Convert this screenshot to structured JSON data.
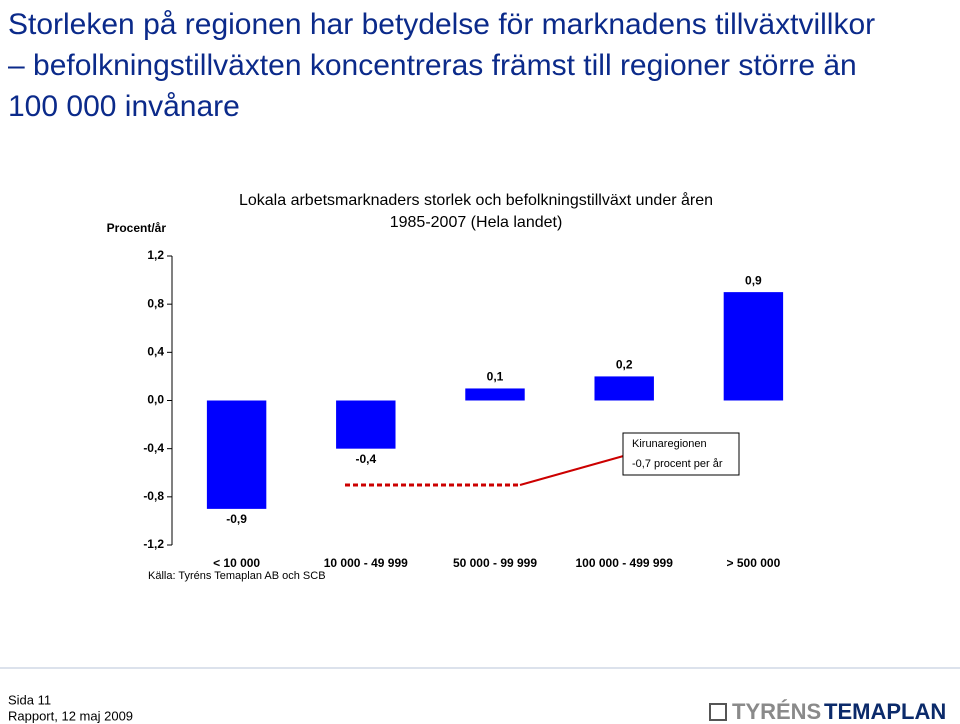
{
  "slide": {
    "title": [
      "Storleken på regionen har betydelse för marknadens tillväxtvillkor",
      "– befolkningstillväxten koncentreras främst till regioner större än",
      "100 000 invånare"
    ]
  },
  "chart_data": {
    "type": "bar",
    "title": [
      "Lokala arbetsmarknaders storlek och befolkningstillväxt under åren",
      "1985-2007 (Hela landet)"
    ],
    "y_label": "Procent/år",
    "categories": [
      "< 10 000",
      "10 000 - 49 999",
      "50 000 - 99 999",
      "100 000 - 499 999",
      "> 500 000"
    ],
    "values": [
      -0.9,
      -0.4,
      0.1,
      0.2,
      0.9
    ],
    "value_labels": [
      "-0,9",
      "-0,4",
      "0,1",
      "0,2",
      "0,9"
    ],
    "color": "#0000ff",
    "ylim": [
      -1.2,
      1.2
    ],
    "yticks": [
      {
        "value": -1.2,
        "label": "-1,2"
      },
      {
        "value": -0.8,
        "label": "-0,8"
      },
      {
        "value": -0.4,
        "label": "-0,4"
      },
      {
        "value": 0,
        "label": "0,0"
      },
      {
        "value": 0.4,
        "label": "0,4"
      },
      {
        "value": 0.8,
        "label": "0,8"
      },
      {
        "value": 1.2,
        "label": "1,2"
      }
    ],
    "annotation": [
      "Kirunaregionen",
      "-0,7 procent per år"
    ],
    "source": "Källa: Tyréns Temaplan AB och SCB"
  },
  "footer": {
    "page": "Sida 11",
    "report": "Rapport, 12 maj 2009",
    "logo": [
      "TYRÉNS",
      "TEMAPLAN"
    ]
  }
}
